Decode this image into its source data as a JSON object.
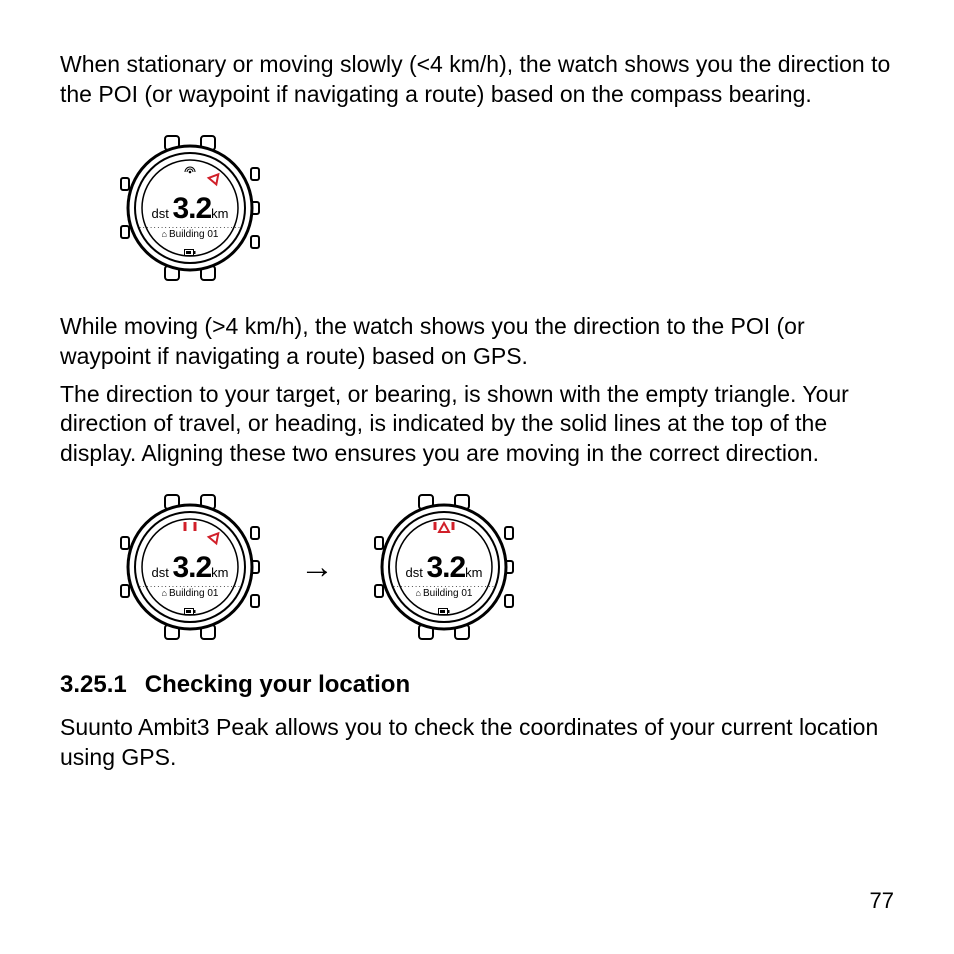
{
  "para1": "When stationary or moving slowly (<4 km/h), the watch shows you the direction to the POI (or waypoint if navigating a route) based on the compass bearing.",
  "para2": "While moving (>4 km/h), the watch shows you the direction to the POI (or waypoint if navigating a route) based on GPS.",
  "para3": "The direction to your target, or bearing, is shown with the empty triangle. Your direction of travel, or heading, is indicated by the solid lines at the top of the display. Aligning these two ensures you are moving in the correct direction.",
  "heading": {
    "num": "3.25.1",
    "text": "Checking your location"
  },
  "para4": "Suunto Ambit3 Peak allows you to check the coordinates of your current location using GPS.",
  "page_number": "77",
  "arrow": "→",
  "watch": {
    "dst_label": "dst",
    "dst_value": "3.2",
    "dst_unit": "km",
    "building_label": "Building 01",
    "dots": "····························",
    "colors": {
      "outline": "#000000",
      "accent": "#d1202a",
      "bg": "#ffffff"
    },
    "variants": {
      "compass": {
        "heading_marks": false,
        "bearing_triangle_angle_deg": 40,
        "bearing_aligned": false,
        "signal_icon": true
      },
      "gps_misaligned": {
        "heading_marks": true,
        "bearing_triangle_angle_deg": 40,
        "bearing_aligned": false,
        "signal_icon": false
      },
      "gps_aligned": {
        "heading_marks": true,
        "bearing_triangle_angle_deg": 0,
        "bearing_aligned": true,
        "signal_icon": false
      }
    }
  }
}
